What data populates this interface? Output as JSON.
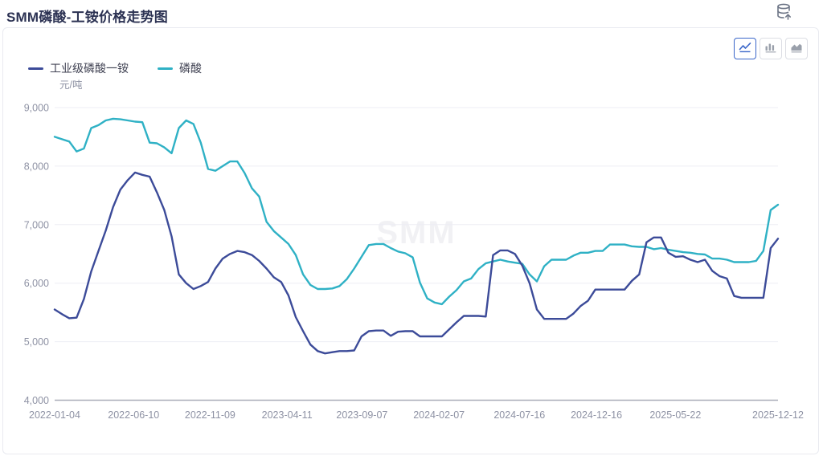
{
  "header": {
    "title": "SMM磷酸-工铵价格走势图"
  },
  "toolbar": {
    "buttons": [
      {
        "name": "line-chart",
        "active": true
      },
      {
        "name": "bar-chart",
        "active": false
      },
      {
        "name": "area-chart",
        "active": false
      }
    ],
    "active_color": "#3a66c9",
    "inactive_color": "#9aa0ab"
  },
  "legend": [
    {
      "label": "工业级磷酸一铵",
      "color": "#3c4b99"
    },
    {
      "label": "磷酸",
      "color": "#2fb1c5"
    }
  ],
  "chart_data": {
    "type": "line",
    "title": "SMM磷酸-工铵价格走势图",
    "ylabel": "元/吨",
    "ylim": [
      4000,
      9000
    ],
    "yticks": [
      "9,000",
      "8,000",
      "7,000",
      "6,000",
      "5,000",
      "4,000"
    ],
    "ytick_values": [
      9000,
      8000,
      7000,
      6000,
      5000,
      4000
    ],
    "xticks": [
      "2022-01-04",
      "2022-06-10",
      "2022-11-09",
      "2023-04-11",
      "2023-09-07",
      "2024-02-07",
      "2024-07-16",
      "2024-12-16",
      "2025-05-22",
      "2025-12-12"
    ],
    "x_range": [
      "2022-01-04",
      "2025-12-12"
    ],
    "grid": true,
    "legend_position": "top-left",
    "watermark": "SMM",
    "series": [
      {
        "name": "磷酸",
        "color": "#2fb1c5",
        "values": [
          8500,
          8460,
          8420,
          8250,
          8300,
          8650,
          8700,
          8780,
          8810,
          8800,
          8780,
          8760,
          8750,
          8400,
          8390,
          8320,
          8220,
          8650,
          8780,
          8720,
          8400,
          7950,
          7920,
          8000,
          8080,
          8080,
          7880,
          7620,
          7480,
          7050,
          6890,
          6780,
          6670,
          6480,
          6150,
          5970,
          5900,
          5900,
          5910,
          5950,
          6070,
          6250,
          6450,
          6650,
          6670,
          6670,
          6600,
          6540,
          6510,
          6440,
          6010,
          5740,
          5670,
          5640,
          5770,
          5880,
          6030,
          6080,
          6240,
          6340,
          6370,
          6400,
          6370,
          6350,
          6330,
          6150,
          6030,
          6290,
          6400,
          6400,
          6400,
          6470,
          6520,
          6520,
          6550,
          6550,
          6660,
          6660,
          6660,
          6630,
          6620,
          6620,
          6580,
          6600,
          6570,
          6550,
          6530,
          6520,
          6500,
          6490,
          6420,
          6420,
          6400,
          6360,
          6360,
          6360,
          6380,
          6550,
          7250,
          7340
        ]
      },
      {
        "name": "工业级磷酸一铵",
        "color": "#3c4b99",
        "values": [
          5550,
          5470,
          5400,
          5410,
          5730,
          6200,
          6550,
          6900,
          7300,
          7600,
          7760,
          7890,
          7850,
          7820,
          7550,
          7250,
          6800,
          6150,
          6000,
          5900,
          5950,
          6020,
          6250,
          6420,
          6500,
          6550,
          6530,
          6480,
          6380,
          6250,
          6100,
          6020,
          5790,
          5420,
          5180,
          4950,
          4840,
          4800,
          4820,
          4840,
          4840,
          4850,
          5090,
          5180,
          5190,
          5190,
          5100,
          5170,
          5180,
          5180,
          5090,
          5090,
          5090,
          5090,
          5210,
          5330,
          5440,
          5440,
          5440,
          5430,
          6480,
          6560,
          6560,
          6500,
          6300,
          6000,
          5550,
          5390,
          5390,
          5390,
          5390,
          5480,
          5610,
          5700,
          5890,
          5890,
          5890,
          5890,
          5890,
          6040,
          6150,
          6700,
          6780,
          6780,
          6520,
          6450,
          6460,
          6400,
          6360,
          6400,
          6210,
          6120,
          6080,
          5780,
          5750,
          5750,
          5750,
          5750,
          6600,
          6760
        ]
      }
    ],
    "colors": {
      "grid": "#edeef4",
      "axis_line": "#a9adb8",
      "tick_text": "#8e92a4",
      "watermark": "#f1f1f4"
    }
  }
}
